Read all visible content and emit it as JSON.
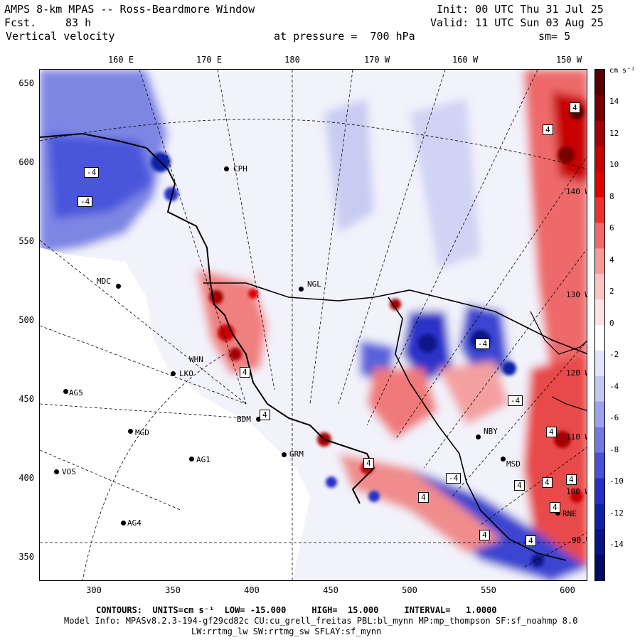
{
  "header": {
    "title": "AMPS 8-km MPAS -- Ross-Beardmore Window",
    "fcst_label": "Fcst.",
    "fcst_value": "83 h",
    "field": "Vertical velocity",
    "init": "Init: 00 UTC Thu 31 Jul 25",
    "valid": "Valid: 11 UTC Sun 03 Aug 25",
    "level": "at pressure =  700 hPa",
    "smooth": "sm= 5"
  },
  "top_axis": [
    "160 E",
    "170 E",
    "180",
    "170 W",
    "160 W",
    "150 W"
  ],
  "left_axis": [
    "650",
    "600",
    "550",
    "500",
    "450",
    "400",
    "350"
  ],
  "bottom_axis": [
    "300",
    "350",
    "400",
    "450",
    "500",
    "550",
    "600"
  ],
  "colorbar": {
    "unit": "cm s⁻¹",
    "ticks": [
      "14",
      "12",
      "10",
      "8",
      "6",
      "4",
      "2",
      "0",
      "-2",
      "-4",
      "-6",
      "-8",
      "-10",
      "-12",
      "-14"
    ],
    "colors_top_to_bottom": [
      "#5a0000",
      "#7a0000",
      "#a50000",
      "#c80000",
      "#e00000",
      "#ee3030",
      "#f46a6a",
      "#f79a9a",
      "#fac4c4",
      "#fde3e3",
      "#ffffff",
      "#e3e3fb",
      "#c4c6f4",
      "#9ea1ec",
      "#7479e2",
      "#4a50d8",
      "#2830c8",
      "#1020a8",
      "#081488",
      "#000c68"
    ]
  },
  "stations": [
    "CPH",
    "MDC",
    "NGL",
    "WHN",
    "LKO",
    "AG5",
    "BDM",
    "MGD",
    "AG1",
    "VOS",
    "GRM",
    "AG4",
    "NBY",
    "MSD",
    "RNE"
  ],
  "contour_labels": [
    "-4",
    "-4",
    "4",
    "4",
    "4",
    "4",
    "4",
    "-4",
    "-4",
    "4",
    "4",
    "4",
    "4",
    "-4",
    "4",
    "4",
    "4",
    "4"
  ],
  "lon_line_labels": [
    "140 W",
    "130 W",
    "120 W",
    "110 W",
    "100 W",
    "90 W"
  ],
  "footer": {
    "contours": "CONTOURS:  UNITS=cm s⁻¹  LOW= -15.000     HIGH=  15.000     INTERVAL=   1.0000",
    "model_info": "Model Info: MPASv8.2.3-194-gf29cd82c CU:cu_grell_freitas PBL:bl_mynn MP:mp_thompson SF:sf_noahmp 8.0",
    "physics": "LW:rrtmg_lw SW:rrtmg_sw SFLAY:sf_mynn"
  }
}
